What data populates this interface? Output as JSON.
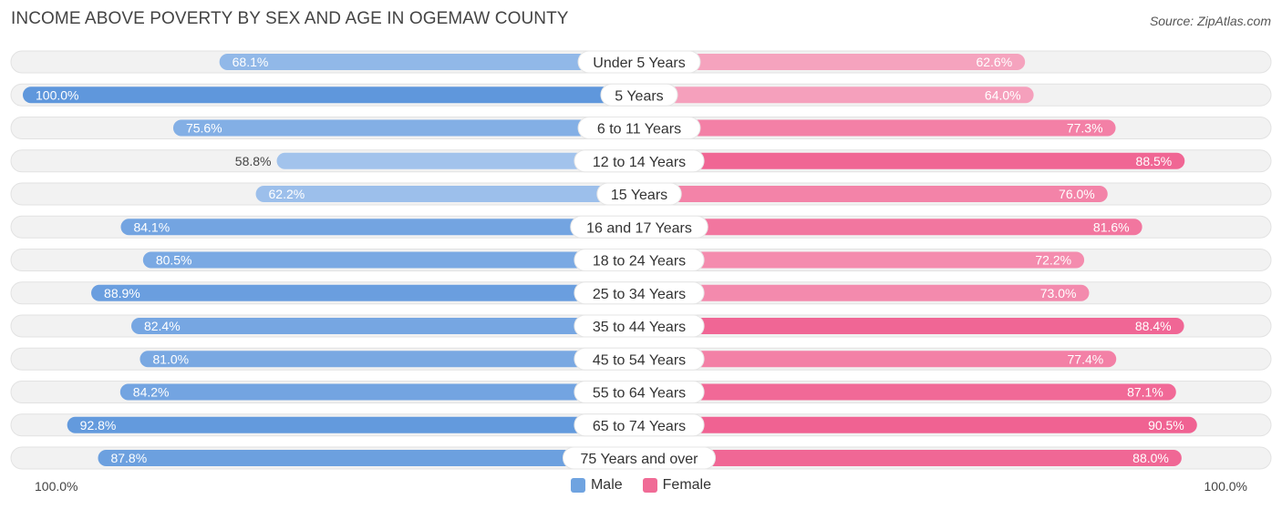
{
  "title": "INCOME ABOVE POVERTY BY SEX AND AGE IN OGEMAW COUNTY",
  "source": "Source: ZipAtlas.com",
  "chart_data": {
    "type": "bar",
    "orientation": "horizontal-diverging",
    "categories": [
      "Under 5 Years",
      "5 Years",
      "6 to 11 Years",
      "12 to 14 Years",
      "15 Years",
      "16 and 17 Years",
      "18 to 24 Years",
      "25 to 34 Years",
      "35 to 44 Years",
      "45 to 54 Years",
      "55 to 64 Years",
      "65 to 74 Years",
      "75 Years and over"
    ],
    "series": [
      {
        "name": "Male",
        "color": "#6fa3e0",
        "values": [
          68.1,
          100.0,
          75.6,
          58.8,
          62.2,
          84.1,
          80.5,
          88.9,
          82.4,
          81.0,
          84.2,
          92.8,
          87.8
        ]
      },
      {
        "name": "Female",
        "color": "#f06b96",
        "values": [
          62.6,
          64.0,
          77.3,
          88.5,
          76.0,
          81.6,
          72.2,
          73.0,
          88.4,
          77.4,
          87.1,
          90.5,
          88.0
        ]
      }
    ],
    "value_labels": {
      "male": [
        "68.1%",
        "100.0%",
        "75.6%",
        "58.8%",
        "62.2%",
        "84.1%",
        "80.5%",
        "88.9%",
        "82.4%",
        "81.0%",
        "84.2%",
        "92.8%",
        "87.8%"
      ],
      "female": [
        "62.6%",
        "64.0%",
        "77.3%",
        "88.5%",
        "76.0%",
        "81.6%",
        "72.2%",
        "73.0%",
        "88.4%",
        "77.4%",
        "87.1%",
        "90.5%",
        "88.0%"
      ]
    },
    "xlim": [
      0,
      100
    ],
    "axis_left_label": "100.0%",
    "axis_right_label": "100.0%",
    "legend_position": "bottom-center"
  }
}
